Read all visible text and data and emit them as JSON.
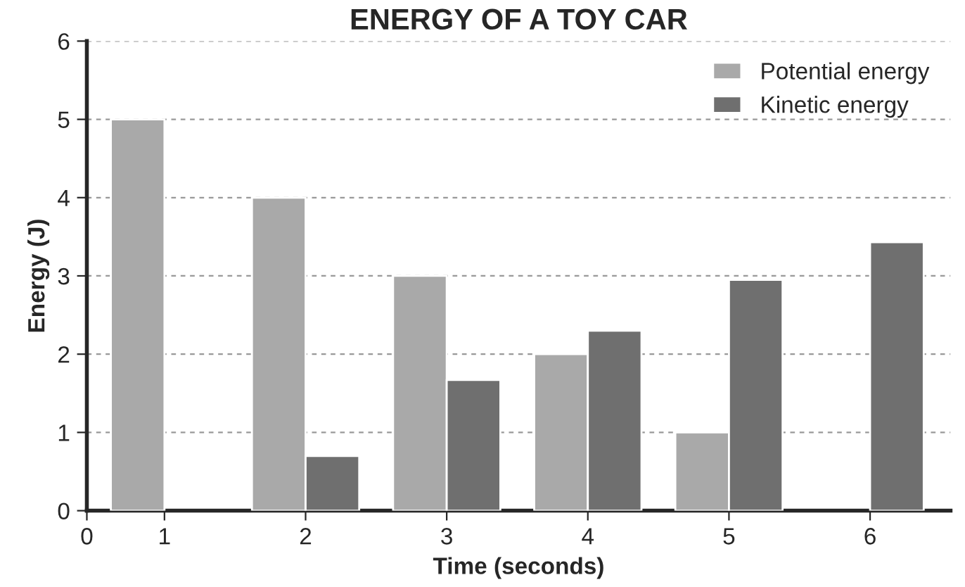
{
  "chart_data": {
    "type": "bar",
    "title": "ENERGY OF A TOY CAR",
    "xlabel": "Time (seconds)",
    "ylabel": "Energy (J)",
    "x": [
      1,
      2,
      3,
      4,
      5,
      6
    ],
    "series": [
      {
        "name": "Potential energy",
        "color": "#a9a9a9",
        "values": [
          5,
          4,
          3,
          2,
          1,
          null
        ]
      },
      {
        "name": "Kinetic energy",
        "color": "#6f6f6f",
        "values": [
          null,
          0.7,
          1.67,
          2.3,
          2.95,
          3.43
        ]
      }
    ],
    "xlim": [
      0.45,
      6.57
    ],
    "xticks": [
      {
        "value": 0.45,
        "label": "0"
      },
      1,
      2,
      3,
      4,
      5,
      6
    ],
    "ylim": [
      0,
      6
    ],
    "yticks": [
      0,
      1,
      2,
      3,
      4,
      5,
      6
    ],
    "grid": "y",
    "legend": "top right"
  }
}
